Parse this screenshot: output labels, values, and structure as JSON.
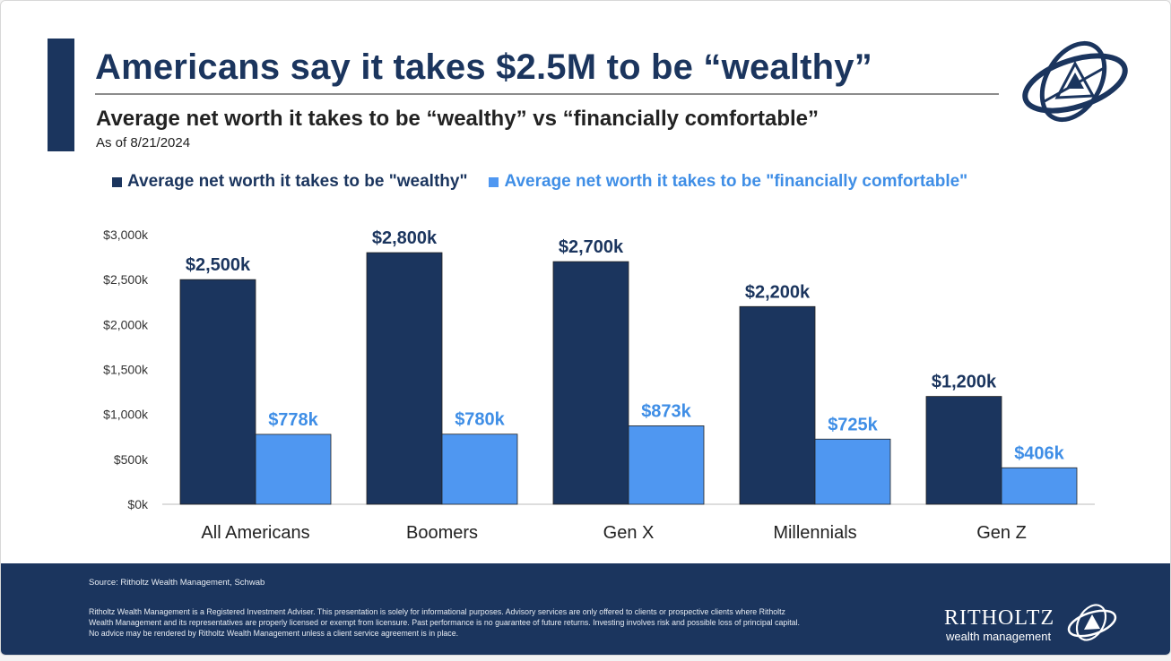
{
  "header": {
    "title": "Americans say it takes $2.5M to be “wealthy”",
    "subtitle": "Average net worth it takes to be “wealthy” vs “financially comfortable”",
    "as_of": "As of 8/21/2024"
  },
  "colors": {
    "navy": "#1b355e",
    "light_blue": "#4f97f1",
    "light_blue_label": "#3f8ee6"
  },
  "chart_data": {
    "type": "bar",
    "categories": [
      "All Americans",
      "Boomers",
      "Gen X",
      "Millennials",
      "Gen Z"
    ],
    "series": [
      {
        "name": "Average net worth it takes to be \"wealthy\"",
        "values": [
          2500,
          2800,
          2700,
          2200,
          1200
        ],
        "labels": [
          "$2,500k",
          "$2,800k",
          "$2,700k",
          "$2,200k",
          "$1,200k"
        ],
        "color": "#1b355e",
        "label_color": "#1b355e"
      },
      {
        "name": "Average net worth it takes to be \"financially comfortable\"",
        "values": [
          778,
          780,
          873,
          725,
          406
        ],
        "labels": [
          "$778k",
          "$780k",
          "$873k",
          "$725k",
          "$406k"
        ],
        "color": "#4f97f1",
        "label_color": "#3f8ee6"
      }
    ],
    "y_ticks": [
      0,
      500,
      1000,
      1500,
      2000,
      2500,
      3000
    ],
    "y_tick_labels": [
      "$0k",
      "$500k",
      "$1,000k",
      "$1,500k",
      "$2,000k",
      "$2,500k",
      "$3,000k"
    ],
    "ylim": [
      0,
      3000
    ],
    "grid": false,
    "legend_position": "top-left"
  },
  "footer": {
    "source": "Source: Ritholtz Wealth Management, Schwab",
    "disclaimer": "Ritholtz Wealth Management is a Registered Investment Adviser. This presentation is solely for informational purposes. Advisory services are only offered to clients or prospective clients where Ritholtz Wealth Management and its representatives are properly licensed or exempt from licensure. Past performance is no guarantee of future returns. Investing involves risk and possible loss of principal capital. No advice may be rendered by Ritholtz Wealth Management unless a client service agreement is in place.",
    "brand_name": "RITHOLTZ",
    "brand_sub": "wealth management"
  }
}
